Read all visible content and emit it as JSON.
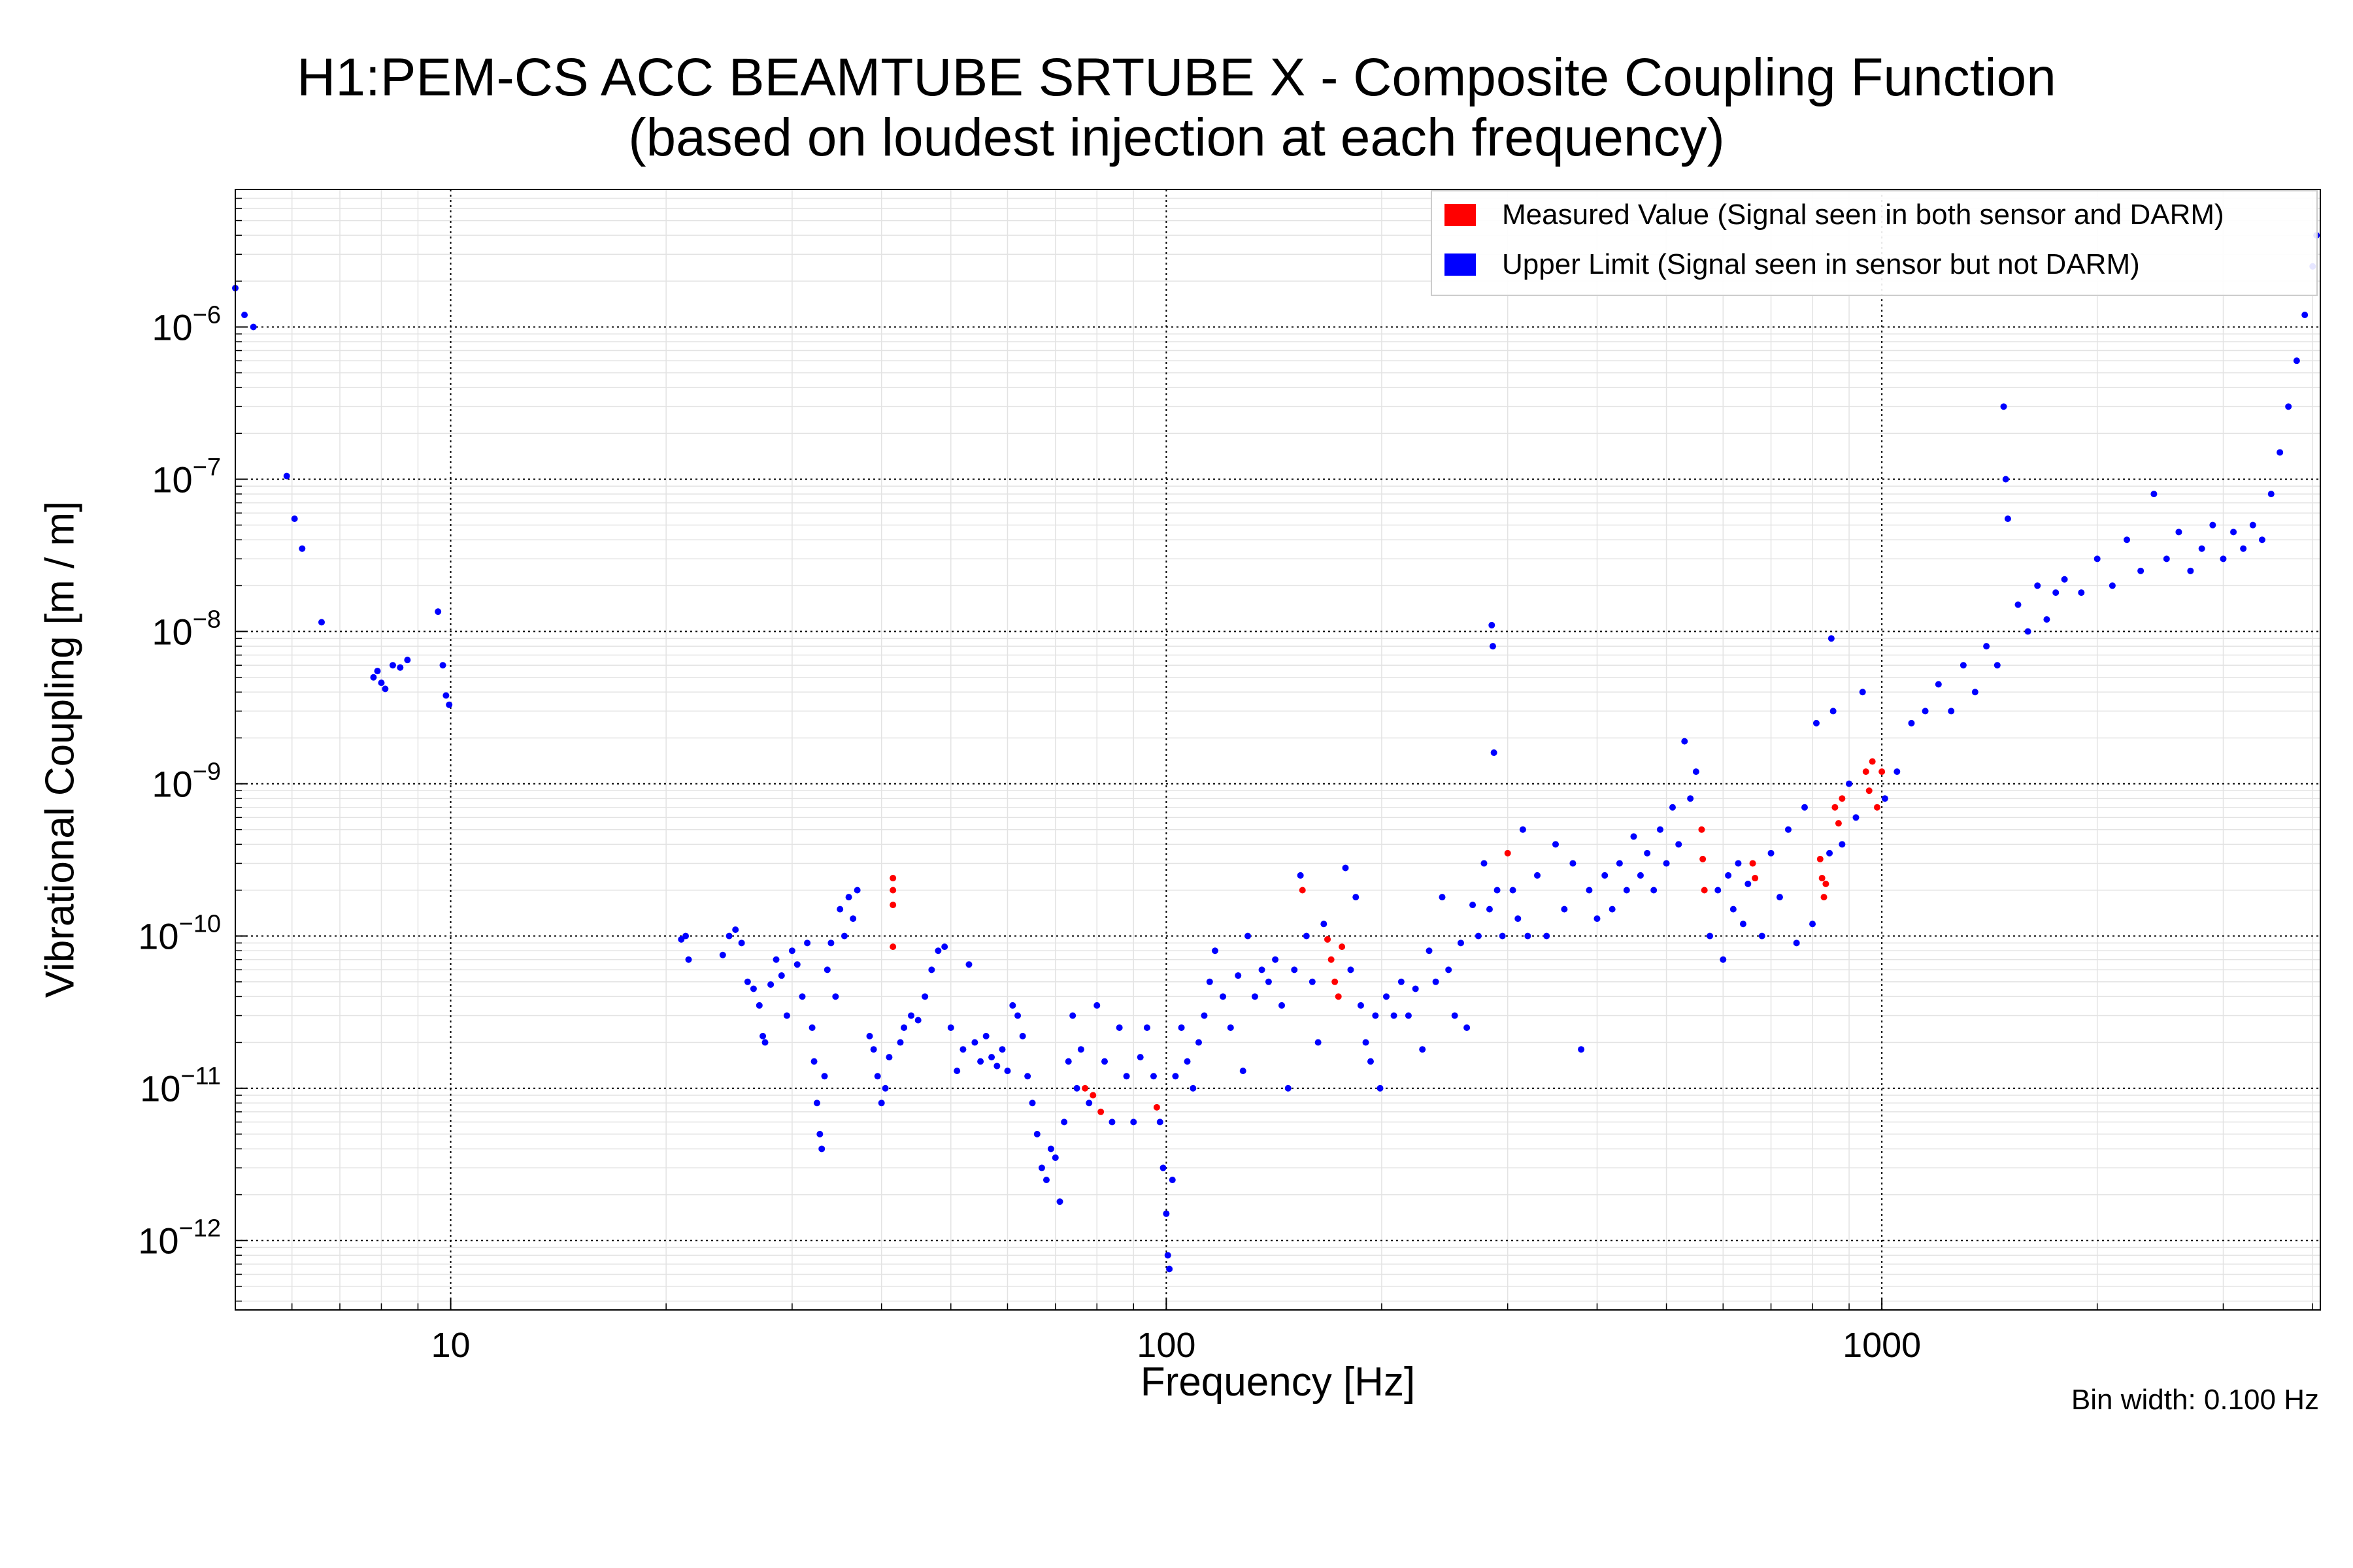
{
  "figure": {
    "title_line1": "H1:PEM-CS ACC BEAMTUBE SRTUBE X - Composite Coupling Function",
    "title_line2": "(based on loudest injection at each frequency)",
    "footnote": "Bin width: 0.100 Hz"
  },
  "colors": {
    "measured": "#ff0000",
    "upper_limit": "#0000ff",
    "axes": "#000000"
  },
  "chart_data": {
    "type": "scatter",
    "xlabel": "Frequency [Hz]",
    "ylabel": "Vibrational Coupling [m / m]",
    "xscale": "log",
    "yscale": "log",
    "xlim": [
      5,
      4100
    ],
    "ylim": [
      3.5e-13,
      8e-06
    ],
    "grid": true,
    "legend_position": "top-right",
    "x_ticks": [
      {
        "value": 10,
        "label": "10"
      },
      {
        "value": 100,
        "label": "100"
      },
      {
        "value": 1000,
        "label": "1000"
      }
    ],
    "y_ticks": [
      {
        "value": 1e-12,
        "base": "10",
        "exponent": "−12"
      },
      {
        "value": 1e-11,
        "base": "10",
        "exponent": "−11"
      },
      {
        "value": 1e-10,
        "base": "10",
        "exponent": "−10"
      },
      {
        "value": 1e-09,
        "base": "10",
        "exponent": "−9"
      },
      {
        "value": 1e-08,
        "base": "10",
        "exponent": "−8"
      },
      {
        "value": 1e-07,
        "base": "10",
        "exponent": "−7"
      },
      {
        "value": 1e-06,
        "base": "10",
        "exponent": "−6"
      }
    ],
    "series": [
      {
        "name": "Measured Value (Signal seen in both sensor and DARM)",
        "color": "#ff0000",
        "points": [
          [
            41.5,
            2.4e-10
          ],
          [
            41.5,
            2e-10
          ],
          [
            41.5,
            1.6e-10
          ],
          [
            41.5,
            8.5e-11
          ],
          [
            77,
            1e-11
          ],
          [
            79,
            9e-12
          ],
          [
            81,
            7e-12
          ],
          [
            97,
            7.5e-12
          ],
          [
            155,
            2e-10
          ],
          [
            168,
            9.5e-11
          ],
          [
            170,
            7e-11
          ],
          [
            172,
            5e-11
          ],
          [
            174,
            4e-11
          ],
          [
            176,
            8.5e-11
          ],
          [
            300,
            3.5e-10
          ],
          [
            560,
            5e-10
          ],
          [
            562,
            3.2e-10
          ],
          [
            565,
            2e-10
          ],
          [
            660,
            3e-10
          ],
          [
            665,
            2.4e-10
          ],
          [
            820,
            3.2e-10
          ],
          [
            825,
            2.4e-10
          ],
          [
            830,
            1.8e-10
          ],
          [
            835,
            2.2e-10
          ],
          [
            860,
            7e-10
          ],
          [
            870,
            5.5e-10
          ],
          [
            880,
            8e-10
          ],
          [
            950,
            1.2e-09
          ],
          [
            960,
            9e-10
          ],
          [
            970,
            1.4e-09
          ],
          [
            985,
            7e-10
          ],
          [
            1000,
            1.2e-09
          ]
        ]
      },
      {
        "name": "Upper Limit (Signal seen in sensor but not DARM)",
        "color": "#0000ff",
        "points": [
          [
            5.0,
            1.8e-06
          ],
          [
            5.15,
            1.2e-06
          ],
          [
            5.3,
            1e-06
          ],
          [
            5.9,
            1.05e-07
          ],
          [
            6.05,
            5.5e-08
          ],
          [
            6.2,
            3.5e-08
          ],
          [
            6.6,
            1.15e-08
          ],
          [
            7.8,
            5e-09
          ],
          [
            7.9,
            5.5e-09
          ],
          [
            8.0,
            4.6e-09
          ],
          [
            8.1,
            4.2e-09
          ],
          [
            8.3,
            6e-09
          ],
          [
            8.5,
            5.8e-09
          ],
          [
            8.7,
            6.5e-09
          ],
          [
            9.6,
            1.35e-08
          ],
          [
            9.75,
            6e-09
          ],
          [
            9.85,
            3.8e-09
          ],
          [
            9.95,
            3.3e-09
          ],
          [
            21.0,
            9.5e-11
          ],
          [
            21.3,
            1e-10
          ],
          [
            21.5,
            7e-11
          ],
          [
            24.0,
            7.5e-11
          ],
          [
            24.5,
            1e-10
          ],
          [
            25.0,
            1.1e-10
          ],
          [
            25.5,
            9e-11
          ],
          [
            26.0,
            5e-11
          ],
          [
            26.5,
            4.5e-11
          ],
          [
            27.0,
            3.5e-11
          ],
          [
            27.3,
            2.2e-11
          ],
          [
            27.5,
            2e-11
          ],
          [
            28.0,
            4.8e-11
          ],
          [
            28.5,
            7e-11
          ],
          [
            29.0,
            5.5e-11
          ],
          [
            29.5,
            3e-11
          ],
          [
            30.0,
            8e-11
          ],
          [
            30.5,
            6.5e-11
          ],
          [
            31.0,
            4e-11
          ],
          [
            31.5,
            9e-11
          ],
          [
            32.0,
            2.5e-11
          ],
          [
            32.2,
            1.5e-11
          ],
          [
            32.5,
            8e-12
          ],
          [
            32.8,
            5e-12
          ],
          [
            33.0,
            4e-12
          ],
          [
            33.3,
            1.2e-11
          ],
          [
            33.6,
            6e-11
          ],
          [
            34.0,
            9e-11
          ],
          [
            34.5,
            4e-11
          ],
          [
            35.0,
            1.5e-10
          ],
          [
            35.5,
            1e-10
          ],
          [
            36.0,
            1.8e-10
          ],
          [
            36.5,
            1.3e-10
          ],
          [
            37.0,
            2e-10
          ],
          [
            38.5,
            2.2e-11
          ],
          [
            39.0,
            1.8e-11
          ],
          [
            39.5,
            1.2e-11
          ],
          [
            40.0,
            8e-12
          ],
          [
            40.5,
            1e-11
          ],
          [
            41.0,
            1.6e-11
          ],
          [
            42.5,
            2e-11
          ],
          [
            43.0,
            2.5e-11
          ],
          [
            44.0,
            3e-11
          ],
          [
            45.0,
            2.8e-11
          ],
          [
            46.0,
            4e-11
          ],
          [
            47.0,
            6e-11
          ],
          [
            48.0,
            8e-11
          ],
          [
            49.0,
            8.5e-11
          ],
          [
            50.0,
            2.5e-11
          ],
          [
            51.0,
            1.3e-11
          ],
          [
            52.0,
            1.8e-11
          ],
          [
            53.0,
            6.5e-11
          ],
          [
            54.0,
            2e-11
          ],
          [
            55.0,
            1.5e-11
          ],
          [
            56.0,
            2.2e-11
          ],
          [
            57.0,
            1.6e-11
          ],
          [
            58.0,
            1.4e-11
          ],
          [
            59.0,
            1.8e-11
          ],
          [
            60.0,
            1.3e-11
          ],
          [
            61.0,
            3.5e-11
          ],
          [
            62.0,
            3e-11
          ],
          [
            63.0,
            2.2e-11
          ],
          [
            64.0,
            1.2e-11
          ],
          [
            65.0,
            8e-12
          ],
          [
            66.0,
            5e-12
          ],
          [
            67.0,
            3e-12
          ],
          [
            68.0,
            2.5e-12
          ],
          [
            69.0,
            4e-12
          ],
          [
            70.0,
            3.5e-12
          ],
          [
            71.0,
            1.8e-12
          ],
          [
            72.0,
            6e-12
          ],
          [
            73.0,
            1.5e-11
          ],
          [
            74.0,
            3e-11
          ],
          [
            75.0,
            1e-11
          ],
          [
            76.0,
            1.8e-11
          ],
          [
            78.0,
            8e-12
          ],
          [
            80.0,
            3.5e-11
          ],
          [
            82.0,
            1.5e-11
          ],
          [
            84.0,
            6e-12
          ],
          [
            86.0,
            2.5e-11
          ],
          [
            88.0,
            1.2e-11
          ],
          [
            90.0,
            6e-12
          ],
          [
            92.0,
            1.6e-11
          ],
          [
            94.0,
            2.5e-11
          ],
          [
            96.0,
            1.2e-11
          ],
          [
            98.0,
            6e-12
          ],
          [
            99.0,
            3e-12
          ],
          [
            100.0,
            1.5e-12
          ],
          [
            100.5,
            8e-13
          ],
          [
            101.0,
            6.5e-13
          ],
          [
            102.0,
            2.5e-12
          ],
          [
            103.0,
            1.2e-11
          ],
          [
            105.0,
            2.5e-11
          ],
          [
            107.0,
            1.5e-11
          ],
          [
            109.0,
            1e-11
          ],
          [
            111.0,
            2e-11
          ],
          [
            113.0,
            3e-11
          ],
          [
            115.0,
            5e-11
          ],
          [
            117.0,
            8e-11
          ],
          [
            120.0,
            4e-11
          ],
          [
            123.0,
            2.5e-11
          ],
          [
            126.0,
            5.5e-11
          ],
          [
            128.0,
            1.3e-11
          ],
          [
            130.0,
            1e-10
          ],
          [
            133.0,
            4e-11
          ],
          [
            136.0,
            6e-11
          ],
          [
            139.0,
            5e-11
          ],
          [
            142.0,
            7e-11
          ],
          [
            145.0,
            3.5e-11
          ],
          [
            148.0,
            1e-11
          ],
          [
            151.0,
            6e-11
          ],
          [
            154.0,
            2.5e-10
          ],
          [
            157.0,
            1e-10
          ],
          [
            160.0,
            5e-11
          ],
          [
            163.0,
            2e-11
          ],
          [
            166.0,
            1.2e-10
          ],
          [
            178.0,
            2.8e-10
          ],
          [
            181.0,
            6e-11
          ],
          [
            184.0,
            1.8e-10
          ],
          [
            187.0,
            3.5e-11
          ],
          [
            190.0,
            2e-11
          ],
          [
            193.0,
            1.5e-11
          ],
          [
            196.0,
            3e-11
          ],
          [
            199.0,
            1e-11
          ],
          [
            203.0,
            4e-11
          ],
          [
            208.0,
            3e-11
          ],
          [
            213.0,
            5e-11
          ],
          [
            218.0,
            3e-11
          ],
          [
            223.0,
            4.5e-11
          ],
          [
            228.0,
            1.8e-11
          ],
          [
            233.0,
            8e-11
          ],
          [
            238.0,
            5e-11
          ],
          [
            243.0,
            1.8e-10
          ],
          [
            248.0,
            6e-11
          ],
          [
            253.0,
            3e-11
          ],
          [
            258.0,
            9e-11
          ],
          [
            263.0,
            2.5e-11
          ],
          [
            268.0,
            1.6e-10
          ],
          [
            273.0,
            1e-10
          ],
          [
            278.0,
            3e-10
          ],
          [
            283.0,
            1.5e-10
          ],
          [
            285.0,
            1.1e-08
          ],
          [
            286.0,
            8e-09
          ],
          [
            287.0,
            1.6e-09
          ],
          [
            290.0,
            2e-10
          ],
          [
            295.0,
            1e-10
          ],
          [
            305.0,
            2e-10
          ],
          [
            310.0,
            1.3e-10
          ],
          [
            315.0,
            5e-10
          ],
          [
            320.0,
            1e-10
          ],
          [
            330.0,
            2.5e-10
          ],
          [
            340.0,
            1e-10
          ],
          [
            350.0,
            4e-10
          ],
          [
            360.0,
            1.5e-10
          ],
          [
            370.0,
            3e-10
          ],
          [
            380.0,
            1.8e-11
          ],
          [
            390.0,
            2e-10
          ],
          [
            400.0,
            1.3e-10
          ],
          [
            410.0,
            2.5e-10
          ],
          [
            420.0,
            1.5e-10
          ],
          [
            430.0,
            3e-10
          ],
          [
            440.0,
            2e-10
          ],
          [
            450.0,
            4.5e-10
          ],
          [
            460.0,
            2.5e-10
          ],
          [
            470.0,
            3.5e-10
          ],
          [
            480.0,
            2e-10
          ],
          [
            490.0,
            5e-10
          ],
          [
            500.0,
            3e-10
          ],
          [
            510.0,
            7e-10
          ],
          [
            520.0,
            4e-10
          ],
          [
            530.0,
            1.9e-09
          ],
          [
            540.0,
            8e-10
          ],
          [
            550.0,
            1.2e-09
          ],
          [
            575.0,
            1e-10
          ],
          [
            590.0,
            2e-10
          ],
          [
            600.0,
            7e-11
          ],
          [
            610.0,
            2.5e-10
          ],
          [
            620.0,
            1.5e-10
          ],
          [
            630.0,
            3e-10
          ],
          [
            640.0,
            1.2e-10
          ],
          [
            650.0,
            2.2e-10
          ],
          [
            680.0,
            1e-10
          ],
          [
            700.0,
            3.5e-10
          ],
          [
            720.0,
            1.8e-10
          ],
          [
            740.0,
            5e-10
          ],
          [
            760.0,
            9e-11
          ],
          [
            780.0,
            7e-10
          ],
          [
            800.0,
            1.2e-10
          ],
          [
            810.0,
            2.5e-09
          ],
          [
            845.0,
            3.5e-10
          ],
          [
            850.0,
            9e-09
          ],
          [
            855.0,
            3e-09
          ],
          [
            880.0,
            4e-10
          ],
          [
            900.0,
            1e-09
          ],
          [
            920.0,
            6e-10
          ],
          [
            940.0,
            4e-09
          ],
          [
            1010.0,
            8e-10
          ],
          [
            1050.0,
            1.2e-09
          ],
          [
            1100.0,
            2.5e-09
          ],
          [
            1150.0,
            3e-09
          ],
          [
            1200.0,
            4.5e-09
          ],
          [
            1250.0,
            3e-09
          ],
          [
            1300.0,
            6e-09
          ],
          [
            1350.0,
            4e-09
          ],
          [
            1400.0,
            8e-09
          ],
          [
            1450.0,
            6e-09
          ],
          [
            1480.0,
            3e-07
          ],
          [
            1490.0,
            1e-07
          ],
          [
            1500.0,
            5.5e-08
          ],
          [
            1550.0,
            1.5e-08
          ],
          [
            1600.0,
            1e-08
          ],
          [
            1650.0,
            2e-08
          ],
          [
            1700.0,
            1.2e-08
          ],
          [
            1750.0,
            1.8e-08
          ],
          [
            1800.0,
            2.2e-08
          ],
          [
            1900.0,
            1.8e-08
          ],
          [
            2000.0,
            3e-08
          ],
          [
            2100.0,
            2e-08
          ],
          [
            2200.0,
            4e-08
          ],
          [
            2300.0,
            2.5e-08
          ],
          [
            2400.0,
            8e-08
          ],
          [
            2500.0,
            3e-08
          ],
          [
            2600.0,
            4.5e-08
          ],
          [
            2700.0,
            2.5e-08
          ],
          [
            2800.0,
            3.5e-08
          ],
          [
            2900.0,
            5e-08
          ],
          [
            3000.0,
            3e-08
          ],
          [
            3100.0,
            4.5e-08
          ],
          [
            3200.0,
            3.5e-08
          ],
          [
            3300.0,
            5e-08
          ],
          [
            3400.0,
            4e-08
          ],
          [
            3500.0,
            8e-08
          ],
          [
            3600.0,
            1.5e-07
          ],
          [
            3700.0,
            3e-07
          ],
          [
            3800.0,
            6e-07
          ],
          [
            3900.0,
            1.2e-06
          ],
          [
            4000.0,
            2.5e-06
          ],
          [
            4050.0,
            4e-06
          ]
        ]
      }
    ]
  }
}
